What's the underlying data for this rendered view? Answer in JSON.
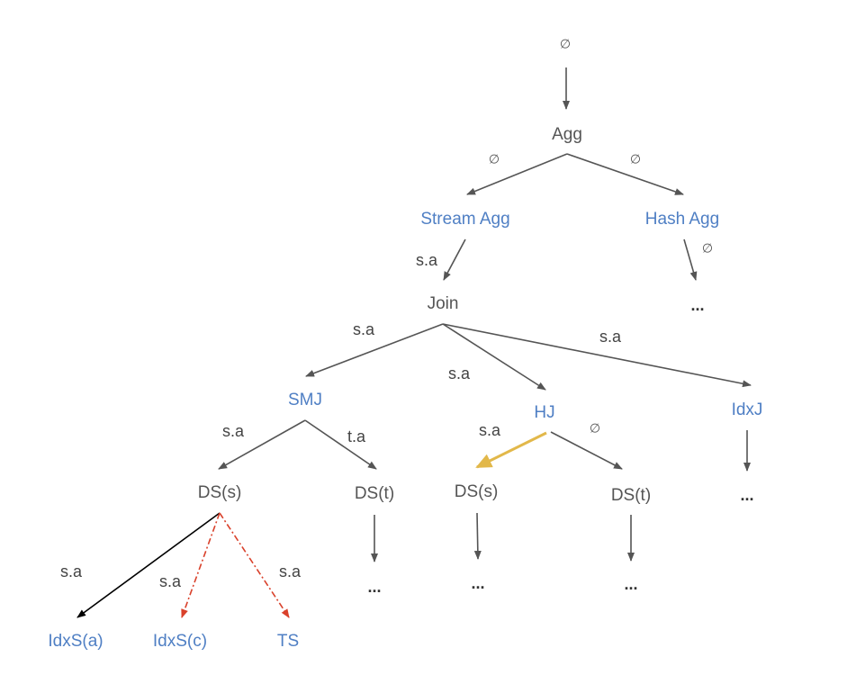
{
  "colors": {
    "operator": "#555555",
    "alternative": "#4f7fc4",
    "edge": "#555555",
    "chosen_edge": "#e2b84a",
    "pruned_edge": "#d9412b",
    "black_edge": "#000000"
  },
  "nodes": {
    "top_empty": "∅",
    "agg": "Agg",
    "stream_agg": "Stream Agg",
    "hash_agg": "Hash Agg",
    "hash_agg_more": "...",
    "join": "Join",
    "smj": "SMJ",
    "hj": "HJ",
    "idxj": "IdxJ",
    "smj_ds_s": "DS(s)",
    "smj_ds_t": "DS(t)",
    "hj_ds_s": "DS(s)",
    "hj_ds_t": "DS(t)",
    "smj_ds_t_more": "...",
    "hj_ds_s_more": "...",
    "hj_ds_t_more": "...",
    "idxj_more": "...",
    "idxs_a": "IdxS(a)",
    "idxs_c": "IdxS(c)",
    "ts": "TS"
  },
  "edge_labels": {
    "agg_stream": "∅",
    "agg_hash": "∅",
    "stream_join": "s.a",
    "hash_more": "∅",
    "join_smj": "s.a",
    "join_hj": "s.a",
    "join_idxj": "s.a",
    "smj_ds_s": "s.a",
    "smj_ds_t": "t.a",
    "hj_ds_s": "s.a",
    "hj_ds_t": "∅",
    "ds_idxs_a": "s.a",
    "ds_idxs_c": "s.a",
    "ds_ts": "s.a"
  }
}
